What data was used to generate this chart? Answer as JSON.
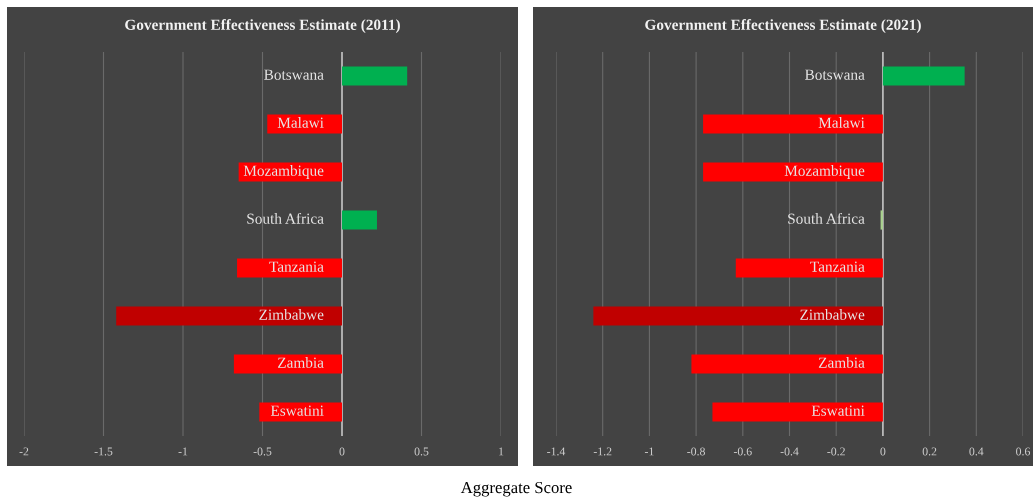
{
  "chart_data": [
    {
      "type": "bar",
      "orientation": "horizontal",
      "title": "Government Effectiveness Estimate (2011)",
      "xlabel": "Aggregate Score",
      "categories": [
        "Botswana",
        "Malawi",
        "Mozambique",
        "South Africa",
        "Tanzania",
        "Zimbabwe",
        "Zambia",
        "Eswatini"
      ],
      "values": [
        0.41,
        -0.47,
        -0.65,
        0.22,
        -0.66,
        -1.42,
        -0.68,
        -0.52
      ],
      "colors": [
        "#00b050",
        "#ff0000",
        "#ff0000",
        "#00b050",
        "#ff0000",
        "#c00000",
        "#ff0000",
        "#ff0000"
      ],
      "xlim": [
        -2,
        1
      ],
      "xticks": [
        -2,
        -1.5,
        -1,
        -0.5,
        0,
        0.5,
        1
      ],
      "grid": "x"
    },
    {
      "type": "bar",
      "orientation": "horizontal",
      "title": "Government Effectiveness Estimate (2021)",
      "categories": [
        "Botswana",
        "Malawi",
        "Mozambique",
        "South Africa",
        "Tanzania",
        "Zimbabwe",
        "Zambia",
        "Eswatini"
      ],
      "values": [
        0.35,
        -0.77,
        -0.77,
        -0.01,
        -0.63,
        -1.24,
        -0.82,
        -0.73
      ],
      "colors": [
        "#00b050",
        "#ff0000",
        "#ff0000",
        "#a9d18e",
        "#ff0000",
        "#c00000",
        "#ff0000",
        "#ff0000"
      ],
      "xlim": [
        -1.4,
        0.6
      ],
      "xticks": [
        -1.4,
        -1.2,
        -1,
        -0.8,
        -0.6,
        -0.4,
        -0.2,
        0,
        0.2,
        0.4,
        0.6
      ],
      "grid": "x"
    }
  ]
}
